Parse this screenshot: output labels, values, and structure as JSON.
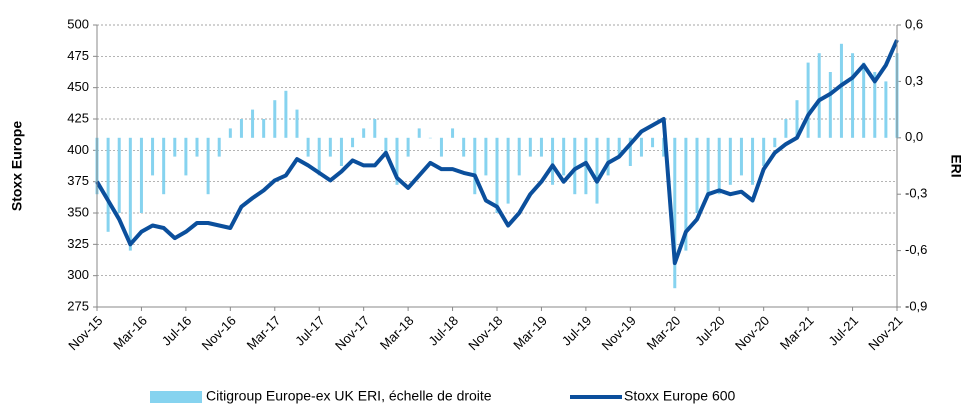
{
  "chart_data": {
    "type": "combo",
    "y_label": "Stoxx Europe",
    "y2_label": "ERI",
    "categories": [
      "Nov-15",
      null,
      null,
      null,
      "Mar-16",
      null,
      null,
      null,
      "Jul-16",
      null,
      null,
      null,
      "Nov-16",
      null,
      null,
      null,
      "Mar-17",
      null,
      null,
      null,
      "Jul-17",
      null,
      null,
      null,
      "Nov-17",
      null,
      null,
      null,
      "Mar-18",
      null,
      null,
      null,
      "Jul-18",
      null,
      null,
      null,
      "Nov-18",
      null,
      null,
      null,
      "Mar-19",
      null,
      null,
      null,
      "Jul-19",
      null,
      null,
      null,
      "Nov-19",
      null,
      null,
      null,
      "Mar-20",
      null,
      null,
      null,
      "Jul-20",
      null,
      null,
      null,
      "Nov-20",
      null,
      null,
      null,
      "Mar-21",
      null,
      null,
      null,
      "Jul-21",
      null,
      null,
      null,
      "Nov-21"
    ],
    "series": [
      {
        "name": "Citigroup Europe-ex UK ERI, échelle de droite",
        "type": "bar",
        "axis": "y2",
        "color": "#86d3ef",
        "values": [
          -0.3,
          -0.5,
          -0.4,
          -0.6,
          -0.4,
          -0.2,
          -0.3,
          -0.1,
          -0.2,
          -0.1,
          -0.3,
          -0.1,
          0.05,
          0.1,
          0.15,
          0.1,
          0.2,
          0.25,
          0.15,
          -0.1,
          -0.2,
          -0.1,
          -0.15,
          -0.05,
          0.05,
          0.1,
          -0.1,
          -0.25,
          -0.1,
          0.05,
          0.0,
          -0.1,
          0.05,
          -0.1,
          -0.3,
          -0.2,
          -0.4,
          -0.35,
          -0.2,
          -0.1,
          -0.1,
          -0.25,
          -0.2,
          -0.3,
          -0.3,
          -0.35,
          -0.2,
          -0.1,
          -0.15,
          -0.1,
          -0.05,
          -0.1,
          -0.8,
          -0.6,
          -0.4,
          -0.3,
          -0.3,
          -0.25,
          -0.2,
          -0.25,
          -0.15,
          -0.05,
          0.1,
          0.2,
          0.4,
          0.45,
          0.35,
          0.5,
          0.45,
          0.4,
          0.35,
          0.3,
          0.45
        ]
      },
      {
        "name": "Stoxx Europe 600",
        "type": "line",
        "color": "#0b4f9c",
        "values": [
          375,
          360,
          345,
          325,
          335,
          340,
          338,
          330,
          335,
          342,
          342,
          340,
          338,
          355,
          362,
          368,
          376,
          380,
          393,
          388,
          382,
          376,
          383,
          392,
          388,
          388,
          398,
          378,
          370,
          380,
          390,
          385,
          385,
          382,
          380,
          360,
          355,
          340,
          350,
          365,
          375,
          388,
          375,
          385,
          390,
          375,
          390,
          395,
          405,
          415,
          420,
          425,
          310,
          335,
          345,
          365,
          368,
          365,
          367,
          360,
          385,
          398,
          405,
          410,
          428,
          440,
          445,
          452,
          458,
          468,
          455,
          468,
          488
        ]
      }
    ],
    "ylim": [
      275,
      500
    ],
    "yticks": [
      275,
      300,
      325,
      350,
      375,
      400,
      425,
      450,
      475,
      500
    ],
    "y2lim": [
      -0.9,
      0.6
    ],
    "y2ticks": [
      {
        "value": -0.9,
        "label": "-0,9"
      },
      {
        "value": -0.6,
        "label": "-0,6"
      },
      {
        "value": -0.3,
        "label": "-0,3"
      },
      {
        "value": 0.0,
        "label": "0,0"
      },
      {
        "value": 0.3,
        "label": "0,3"
      },
      {
        "value": 0.6,
        "label": "0,6"
      }
    ],
    "grid": true,
    "legend": "bottom"
  }
}
